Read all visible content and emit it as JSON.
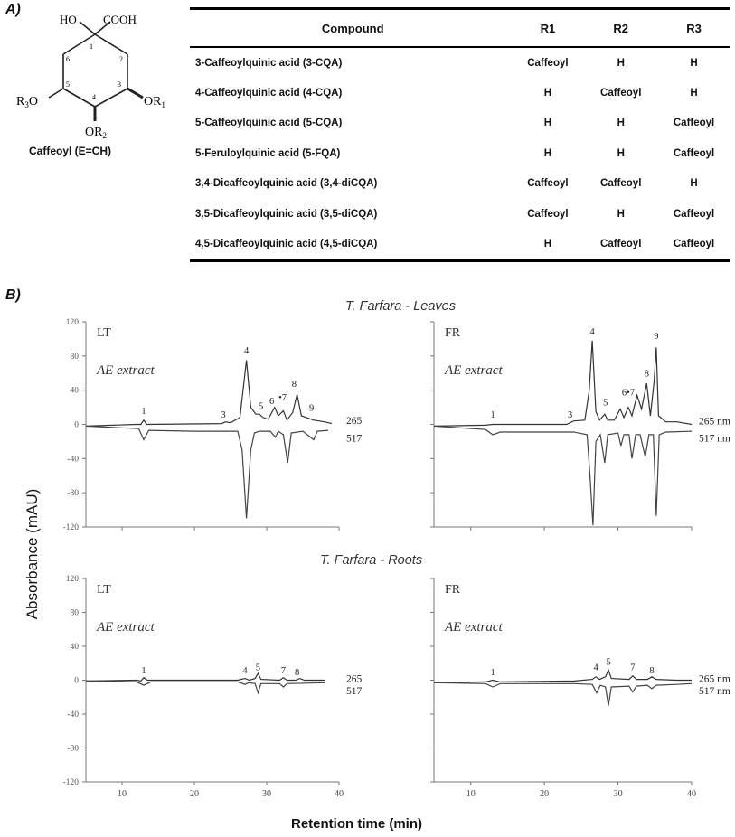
{
  "panel_a": {
    "letter": "A)",
    "structure": {
      "hydroxyl": "HO",
      "acid": "COOH",
      "positions": [
        "1",
        "2",
        "3",
        "4",
        "5",
        "6"
      ],
      "substituents": {
        "r1": "OR",
        "r1_sub": "1",
        "r2": "OR",
        "r2_sub": "2",
        "r3": "R",
        "r3_sub": "3",
        "r3_o": "O"
      },
      "caffeoyl_label": "Caffeoyl (E=CH)"
    },
    "table": {
      "headers": [
        "Compound",
        "R1",
        "R2",
        "R3"
      ],
      "rows": [
        [
          "3-Caffeoylquinic acid (3-CQA)",
          "Caffeoyl",
          "H",
          "H"
        ],
        [
          "4-Caffeoylquinic acid (4-CQA)",
          "H",
          "Caffeoyl",
          "H"
        ],
        [
          "5-Caffeoylquinic acid (5-CQA)",
          "H",
          "H",
          "Caffeoyl"
        ],
        [
          "5-Feruloylquinic acid (5-FQA)",
          "H",
          "H",
          "Caffeoyl"
        ],
        [
          "3,4-Dicaffeoylquinic acid (3,4-diCQA)",
          "Caffeoyl",
          "Caffeoyl",
          "H"
        ],
        [
          "3,5-Dicaffeoylquinic acid (3,5-diCQA)",
          "Caffeoyl",
          "H",
          "Caffeoyl"
        ],
        [
          "4,5-Dicaffeoylquinic acid (4,5-diCQA)",
          "H",
          "Caffeoyl",
          "Caffeoyl"
        ]
      ]
    }
  },
  "panel_b": {
    "letter": "B)",
    "leaves_title": "T. Farfara - Leaves",
    "roots_title": "T. Farfara - Roots",
    "ylabel": "Absorbance (mAU)",
    "xlabel": "Retention time (min)"
  },
  "chart_data": [
    {
      "type": "line",
      "panel": "Leaves LT",
      "method_label": "LT",
      "extract_label": "AE extract",
      "xlim": [
        5,
        40
      ],
      "ylim": [
        -120,
        120
      ],
      "xticks": [
        10,
        20,
        30,
        40
      ],
      "yticks": [
        120,
        80,
        40,
        0,
        -40,
        -80,
        -120
      ],
      "show_ytick_labels": true,
      "show_xtick_labels": false,
      "series": [
        {
          "name": "265 nm",
          "points": [
            [
              5,
              -2
            ],
            [
              12,
              0
            ],
            [
              12.6,
              0
            ],
            [
              13,
              5
            ],
            [
              13.4,
              0
            ],
            [
              23.8,
              1
            ],
            [
              24.3,
              3
            ],
            [
              25,
              2
            ],
            [
              26.3,
              8
            ],
            [
              27.2,
              75
            ],
            [
              27.8,
              20
            ],
            [
              28.5,
              12
            ],
            [
              29,
              12
            ],
            [
              29.5,
              8
            ],
            [
              30.2,
              6
            ],
            [
              31.1,
              20
            ],
            [
              31.6,
              10
            ],
            [
              32.3,
              16
            ],
            [
              32.8,
              5
            ],
            [
              33.6,
              14
            ],
            [
              34.2,
              35
            ],
            [
              34.8,
              10
            ],
            [
              35.5,
              8
            ],
            [
              36.5,
              5
            ],
            [
              38,
              3
            ],
            [
              39,
              1
            ]
          ]
        },
        {
          "name": "517 nm",
          "points": [
            [
              5,
              -2
            ],
            [
              12.3,
              -5
            ],
            [
              13,
              -18
            ],
            [
              13.7,
              -7
            ],
            [
              20,
              -8
            ],
            [
              24,
              -8
            ],
            [
              26,
              -8
            ],
            [
              26.6,
              -30
            ],
            [
              27.2,
              -110
            ],
            [
              27.8,
              -30
            ],
            [
              28.3,
              -10
            ],
            [
              29,
              -8
            ],
            [
              30.5,
              -8
            ],
            [
              31.2,
              -15
            ],
            [
              31.6,
              -8
            ],
            [
              32.3,
              -12
            ],
            [
              32.9,
              -45
            ],
            [
              33.4,
              -10
            ],
            [
              35,
              -8
            ],
            [
              36.5,
              -18
            ],
            [
              37,
              -8
            ],
            [
              38.5,
              -7
            ]
          ]
        }
      ],
      "peak_labels": [
        {
          "label": "1",
          "x": 13,
          "y": 12
        },
        {
          "label": "3",
          "x": 24,
          "y": 8
        },
        {
          "label": "4",
          "x": 27.2,
          "y": 83
        },
        {
          "label": "5",
          "x": 29.2,
          "y": 18
        },
        {
          "label": "6",
          "x": 30.7,
          "y": 24
        },
        {
          "label": "•7",
          "x": 32.2,
          "y": 28
        },
        {
          "label": "8",
          "x": 33.8,
          "y": 44
        },
        {
          "label": "9",
          "x": 36.2,
          "y": 16
        }
      ],
      "channel_labels": [
        {
          "label": "265 nm",
          "y": 5
        },
        {
          "label": "517 nm",
          "y": -16
        }
      ]
    },
    {
      "type": "line",
      "panel": "Leaves FR",
      "method_label": "FR",
      "extract_label": "AE extract",
      "xlim": [
        5,
        40
      ],
      "ylim": [
        -120,
        120
      ],
      "xticks": [
        10,
        20,
        30,
        40
      ],
      "yticks": [
        120,
        80,
        40,
        0,
        -40,
        -80,
        -120
      ],
      "show_ytick_labels": false,
      "show_xtick_labels": false,
      "series": [
        {
          "name": "265 nm",
          "points": [
            [
              5,
              -2
            ],
            [
              12,
              -1
            ],
            [
              13,
              0
            ],
            [
              23,
              0
            ],
            [
              24,
              4
            ],
            [
              25.5,
              5
            ],
            [
              26.1,
              40
            ],
            [
              26.5,
              98
            ],
            [
              27,
              15
            ],
            [
              27.5,
              5
            ],
            [
              28.2,
              12
            ],
            [
              28.6,
              5
            ],
            [
              29.5,
              5
            ],
            [
              30.3,
              18
            ],
            [
              30.8,
              8
            ],
            [
              31.4,
              20
            ],
            [
              31.9,
              10
            ],
            [
              32.6,
              34
            ],
            [
              33.2,
              18
            ],
            [
              33.9,
              48
            ],
            [
              34.4,
              10
            ],
            [
              34.9,
              50
            ],
            [
              35.2,
              90
            ],
            [
              35.5,
              10
            ],
            [
              36.5,
              3
            ],
            [
              38,
              3
            ],
            [
              40,
              0
            ]
          ]
        },
        {
          "name": "517 nm",
          "points": [
            [
              5,
              -2
            ],
            [
              12,
              -6
            ],
            [
              13,
              -12
            ],
            [
              14,
              -9
            ],
            [
              20,
              -9
            ],
            [
              24,
              -9
            ],
            [
              25.8,
              -12
            ],
            [
              26.2,
              -60
            ],
            [
              26.6,
              -118
            ],
            [
              27,
              -20
            ],
            [
              27.6,
              -12
            ],
            [
              28.2,
              -45
            ],
            [
              28.6,
              -12
            ],
            [
              30,
              -10
            ],
            [
              30.4,
              -25
            ],
            [
              30.8,
              -12
            ],
            [
              31.5,
              -12
            ],
            [
              31.9,
              -40
            ],
            [
              32.4,
              -12
            ],
            [
              33,
              -12
            ],
            [
              33.7,
              -38
            ],
            [
              34.2,
              -12
            ],
            [
              34.8,
              -12
            ],
            [
              35.2,
              -107
            ],
            [
              35.6,
              -12
            ],
            [
              36.5,
              -9
            ],
            [
              40,
              -8
            ]
          ]
        }
      ],
      "peak_labels": [
        {
          "label": "1",
          "x": 13,
          "y": 8
        },
        {
          "label": "3",
          "x": 23.5,
          "y": 8
        },
        {
          "label": "4",
          "x": 26.5,
          "y": 105
        },
        {
          "label": "5",
          "x": 28.3,
          "y": 22
        },
        {
          "label": "6•7",
          "x": 31.4,
          "y": 34
        },
        {
          "label": "8",
          "x": 33.9,
          "y": 56
        },
        {
          "label": "9",
          "x": 35.2,
          "y": 100
        }
      ],
      "channel_labels": [
        {
          "label": "265 nm",
          "y": 4
        },
        {
          "label": "517 nm",
          "y": -16
        }
      ]
    },
    {
      "type": "line",
      "panel": "Roots LT",
      "method_label": "LT",
      "extract_label": "AE extract",
      "xlim": [
        5,
        40
      ],
      "ylim": [
        -120,
        120
      ],
      "xticks": [
        10,
        20,
        30,
        40
      ],
      "yticks": [
        120,
        80,
        40,
        0,
        -40,
        -80,
        -120
      ],
      "show_ytick_labels": true,
      "show_xtick_labels": true,
      "series": [
        {
          "name": "265 nm",
          "points": [
            [
              5,
              -1
            ],
            [
              12,
              0
            ],
            [
              12.6,
              -1
            ],
            [
              13,
              3
            ],
            [
              13.5,
              0
            ],
            [
              26,
              0
            ],
            [
              27,
              2
            ],
            [
              27.6,
              0
            ],
            [
              28.4,
              2
            ],
            [
              28.8,
              8
            ],
            [
              29.2,
              1
            ],
            [
              31.8,
              0
            ],
            [
              32.3,
              3
            ],
            [
              32.8,
              0
            ],
            [
              34,
              0
            ],
            [
              34.6,
              2
            ],
            [
              35.2,
              0
            ],
            [
              38,
              0
            ]
          ]
        },
        {
          "name": "517 nm",
          "points": [
            [
              5,
              -1
            ],
            [
              12,
              -2
            ],
            [
              13,
              -6
            ],
            [
              14,
              -2
            ],
            [
              20,
              -2
            ],
            [
              26,
              -2
            ],
            [
              27,
              -5
            ],
            [
              27.5,
              -3
            ],
            [
              28.4,
              -4
            ],
            [
              28.8,
              -15
            ],
            [
              29.2,
              -4
            ],
            [
              31.8,
              -4
            ],
            [
              32.3,
              -8
            ],
            [
              32.8,
              -4
            ],
            [
              38,
              -3
            ]
          ]
        }
      ],
      "peak_labels": [
        {
          "label": "1",
          "x": 13,
          "y": 8
        },
        {
          "label": "4",
          "x": 27,
          "y": 8
        },
        {
          "label": "5",
          "x": 28.8,
          "y": 12
        },
        {
          "label": "7",
          "x": 32.3,
          "y": 8
        },
        {
          "label": "8",
          "x": 34.2,
          "y": 6
        }
      ],
      "channel_labels": [
        {
          "label": "265 nm",
          "y": 2
        },
        {
          "label": "517 nm",
          "y": -12
        }
      ]
    },
    {
      "type": "line",
      "panel": "Roots FR",
      "method_label": "FR",
      "extract_label": "AE extract",
      "xlim": [
        5,
        40
      ],
      "ylim": [
        -120,
        120
      ],
      "xticks": [
        10,
        20,
        30,
        40
      ],
      "yticks": [
        120,
        80,
        40,
        0,
        -40,
        -80,
        -120
      ],
      "show_ytick_labels": false,
      "show_xtick_labels": true,
      "series": [
        {
          "name": "265 nm",
          "points": [
            [
              5,
              -3
            ],
            [
              12,
              -2
            ],
            [
              13,
              0
            ],
            [
              14,
              -2
            ],
            [
              24,
              -1
            ],
            [
              26.5,
              1
            ],
            [
              27,
              4
            ],
            [
              27.5,
              1
            ],
            [
              28.3,
              4
            ],
            [
              28.7,
              12
            ],
            [
              29.1,
              2
            ],
            [
              31.5,
              1
            ],
            [
              32,
              5
            ],
            [
              32.5,
              1
            ],
            [
              34,
              1
            ],
            [
              34.6,
              4
            ],
            [
              35.2,
              1
            ],
            [
              38,
              0
            ],
            [
              40,
              0
            ]
          ]
        },
        {
          "name": "517 nm",
          "points": [
            [
              5,
              -3
            ],
            [
              12,
              -4
            ],
            [
              13,
              -8
            ],
            [
              14,
              -4
            ],
            [
              24,
              -4
            ],
            [
              26.5,
              -5
            ],
            [
              27.1,
              -15
            ],
            [
              27.6,
              -6
            ],
            [
              28.3,
              -8
            ],
            [
              28.7,
              -30
            ],
            [
              29.1,
              -8
            ],
            [
              31.5,
              -7
            ],
            [
              32,
              -14
            ],
            [
              32.5,
              -7
            ],
            [
              34,
              -6
            ],
            [
              34.6,
              -10
            ],
            [
              35.2,
              -6
            ],
            [
              38,
              -5
            ],
            [
              40,
              -4
            ]
          ]
        }
      ],
      "peak_labels": [
        {
          "label": "1",
          "x": 13,
          "y": 6
        },
        {
          "label": "4",
          "x": 27,
          "y": 12
        },
        {
          "label": "5",
          "x": 28.7,
          "y": 18
        },
        {
          "label": "7",
          "x": 32,
          "y": 12
        },
        {
          "label": "8",
          "x": 34.6,
          "y": 8
        }
      ],
      "channel_labels": [
        {
          "label": "265 nm",
          "y": 2
        },
        {
          "label": "517 nm",
          "y": -12
        }
      ]
    }
  ]
}
